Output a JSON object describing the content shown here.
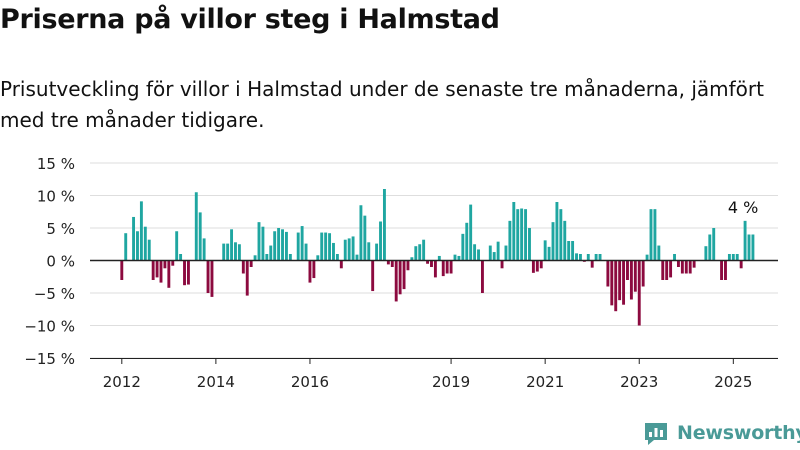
{
  "title": "Priserna på villor steg i Halmstad",
  "subtitle": "Prisutveckling för villor i Halmstad under de senaste tre månaderna, jämfört med tre månader tidigare.",
  "brand": {
    "name": "Newsworthy",
    "logo_icon": "newsworthy-logo-icon",
    "color": "#4a9a97"
  },
  "chart_data": {
    "type": "bar",
    "title": "",
    "xlabel": "",
    "ylabel": "",
    "ylim": [
      -15,
      15
    ],
    "yticks": [
      15,
      10,
      5,
      0,
      -5,
      -10,
      -15
    ],
    "ytick_labels": [
      "15 %",
      "10 %",
      "5 %",
      "0 %",
      "−5 %",
      "−10 %",
      "−15 %"
    ],
    "x_start": "2012-01",
    "xticks": [
      {
        "label": "2012",
        "month": "2012-01"
      },
      {
        "label": "2014",
        "month": "2014-01"
      },
      {
        "label": "2016",
        "month": "2016-01"
      },
      {
        "label": "2019",
        "month": "2019-01"
      },
      {
        "label": "2021",
        "month": "2021-01"
      },
      {
        "label": "2023",
        "month": "2023-01"
      },
      {
        "label": "2025",
        "month": "2025-01"
      }
    ],
    "colors": {
      "positive": "#1fa6a1",
      "negative": "#8c0a3f"
    },
    "grid": true,
    "annotation": {
      "text": "4 %",
      "month": "2025-04"
    },
    "values": [
      -3,
      4.2,
      0,
      6.7,
      4.5,
      9.1,
      5.2,
      3.2,
      -3,
      -2.6,
      -3.4,
      -1.2,
      -4.2,
      -0.8,
      4.5,
      1,
      -3.8,
      -3.7,
      0,
      10.5,
      7.4,
      3.4,
      -5,
      -5.6,
      0,
      0,
      2.6,
      2.6,
      4.8,
      2.8,
      2.5,
      -2,
      -5.4,
      -1,
      0.8,
      5.9,
      5.2,
      1,
      2.3,
      4.5,
      5,
      4.8,
      4.4,
      1,
      0,
      4.3,
      5.3,
      2.6,
      -3.4,
      -2.7,
      0.8,
      4.3,
      4.3,
      4.2,
      2.7,
      1,
      -1.2,
      3.2,
      3.4,
      3.7,
      0.9,
      8.5,
      6.9,
      2.8,
      -4.7,
      2.6,
      6,
      11,
      -0.6,
      -1,
      -6.3,
      -5.2,
      -4.4,
      -1.5,
      0.5,
      2.2,
      2.5,
      3.2,
      -0.5,
      -1,
      -2.6,
      0.7,
      -2.4,
      -2,
      -2,
      0.9,
      0.7,
      4.1,
      5.8,
      8.6,
      2.5,
      1.7,
      -5,
      0,
      2.3,
      1.3,
      2.9,
      -1.2,
      2.3,
      6.1,
      9,
      7.9,
      8,
      7.9,
      5,
      -1.9,
      -1.7,
      -1.2,
      3.1,
      2.1,
      5.9,
      9,
      7.9,
      6.1,
      3,
      3,
      1.1,
      1,
      -0.2,
      1,
      -1.1,
      1,
      1,
      0,
      -4,
      -6.9,
      -7.8,
      -6.1,
      -6.8,
      -3,
      -6,
      -4.8,
      -10,
      -4,
      0.9,
      7.9,
      7.9,
      2.3,
      -3,
      -3,
      -2.6,
      1,
      -1,
      -2,
      -2,
      -2,
      -1.1,
      0,
      0,
      2.2,
      4,
      5,
      0,
      -3,
      -3,
      1,
      1,
      1,
      -1.2,
      6.1,
      4,
      4
    ]
  }
}
